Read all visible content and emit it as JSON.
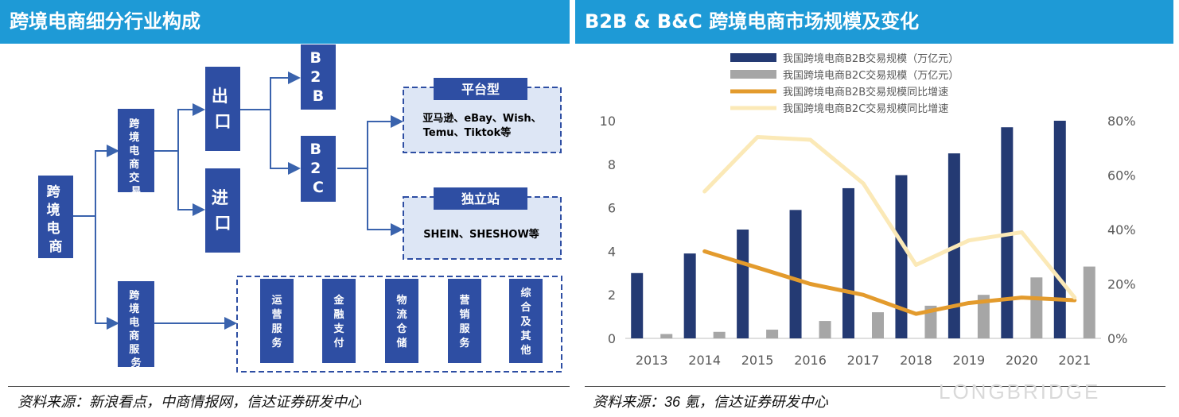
{
  "left_panel": {
    "title": "跨境电商细分行业构成",
    "source": "资料来源：新浪看点，中商情报网，信达证券研发中心",
    "nodes": {
      "root": "跨境电商",
      "trade": "跨境电商交易",
      "service": "跨境电商服务",
      "export": "出口",
      "import": "进口",
      "b2b": "B2B",
      "b2c": "B2C",
      "platform_title": "平台型",
      "platform_line1": "亚马逊、eBay、Wish、",
      "platform_line2": "Temu、Tiktok等",
      "indie_title": "独立站",
      "indie_text": "SHEIN、SHESHOW等",
      "services": [
        "运营服务",
        "金融支付",
        "物流仓储",
        "营销服务",
        "综合及其他"
      ]
    }
  },
  "right_panel": {
    "title": "B2B & B&C 跨境电商市场规模及变化",
    "source_prefix": "资料来源：",
    "source_num": "36",
    "source_suffix": " 氪，信达证券研发中心",
    "watermark": "LONGBRIDGE"
  },
  "chart_data": {
    "type": "bar",
    "categories": [
      "2013",
      "2014",
      "2015",
      "2016",
      "2017",
      "2018",
      "2019",
      "2020",
      "2021"
    ],
    "series": [
      {
        "name": "我国跨境电商B2B交易规模（万亿元）",
        "kind": "bar",
        "axis": "left",
        "color": "#243a73",
        "values": [
          3.0,
          3.9,
          5.0,
          5.9,
          6.9,
          7.5,
          8.5,
          9.7,
          10.0
        ]
      },
      {
        "name": "我国跨境电商B2C交易规模（万亿元）",
        "kind": "bar",
        "axis": "left",
        "color": "#a6a6a6",
        "values": [
          0.2,
          0.3,
          0.4,
          0.8,
          1.2,
          1.5,
          2.0,
          2.8,
          3.3
        ]
      },
      {
        "name": "我国跨境电商B2B交易规模同比增速",
        "kind": "line",
        "axis": "right",
        "color": "#e39b2d",
        "values": [
          null,
          0.32,
          0.26,
          0.2,
          0.16,
          0.09,
          0.13,
          0.15,
          0.14
        ]
      },
      {
        "name": "我国跨境电商B2C交易规模同比增速",
        "kind": "line",
        "axis": "right",
        "color": "#fbe9b7",
        "values": [
          null,
          0.54,
          0.74,
          0.73,
          0.57,
          0.27,
          0.36,
          0.39,
          0.15
        ]
      }
    ],
    "y_left": {
      "min": 0,
      "max": 10,
      "ticks": [
        "0",
        "2",
        "4",
        "6",
        "8",
        "10"
      ]
    },
    "y_right": {
      "min": 0,
      "max": 0.8,
      "ticks": [
        "0%",
        "20%",
        "40%",
        "60%",
        "80%"
      ]
    },
    "legend_position": "top",
    "grid": false
  }
}
